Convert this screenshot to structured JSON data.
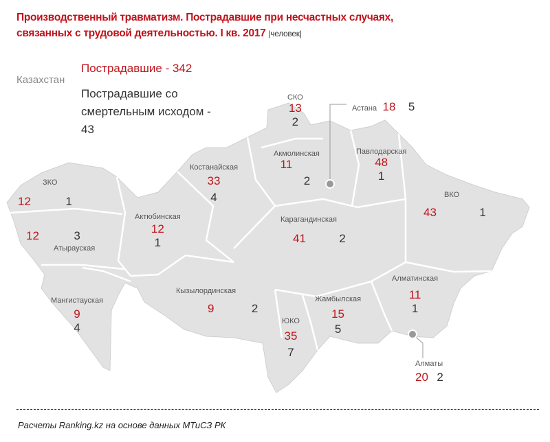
{
  "title_line1": "Производственный травматизм. Пострадавшие при несчастных случаях,",
  "title_line2": "связанных с трудовой деятельностью. I кв. 2017",
  "unit": "|человек|",
  "country": "Казахстан",
  "legend_injured": "Пострадавшие - 342",
  "legend_fatal": "Пострадавшие со смертельным исходом - 43",
  "source": "Расчеты Ranking.kz на основе данных МТиСЗ РК",
  "colors": {
    "injured": "#c0141c",
    "fatal": "#333333",
    "map_fill": "#e2e2e2"
  },
  "regions": {
    "sko": {
      "name": "СКО",
      "injured": "13",
      "fatal": "2"
    },
    "astana": {
      "name": "Астана",
      "injured": "18",
      "fatal": "5"
    },
    "akmola": {
      "name": "Акмолинская",
      "injured": "11",
      "fatal": "2"
    },
    "pavlodar": {
      "name": "Павлодарская",
      "injured": "48",
      "fatal": "1"
    },
    "kostanay": {
      "name": "Костанайская",
      "injured": "33",
      "fatal": "4"
    },
    "zko": {
      "name": "ЗКО",
      "injured": "12",
      "fatal": "1"
    },
    "atyrau": {
      "name": "Атырауская",
      "injured": "12",
      "fatal": "3"
    },
    "aktobe": {
      "name": "Актюбинская",
      "injured": "12",
      "fatal": "1"
    },
    "karaganda": {
      "name": "Карагандинская",
      "injured": "41",
      "fatal": "2"
    },
    "vko": {
      "name": "ВКО",
      "injured": "43",
      "fatal": "1"
    },
    "mangystau": {
      "name": "Мангистауская",
      "injured": "9",
      "fatal": "4"
    },
    "kyzylorda": {
      "name": "Кызылординская",
      "injured": "9",
      "fatal": "2"
    },
    "yuko": {
      "name": "ЮКО",
      "injured": "35",
      "fatal": "7"
    },
    "zhambyl": {
      "name": "Жамбылская",
      "injured": "15",
      "fatal": "5"
    },
    "almaty_obl": {
      "name": "Алматинская",
      "injured": "11",
      "fatal": "1"
    },
    "almaty": {
      "name": "Алматы",
      "injured": "20",
      "fatal": "2"
    }
  }
}
